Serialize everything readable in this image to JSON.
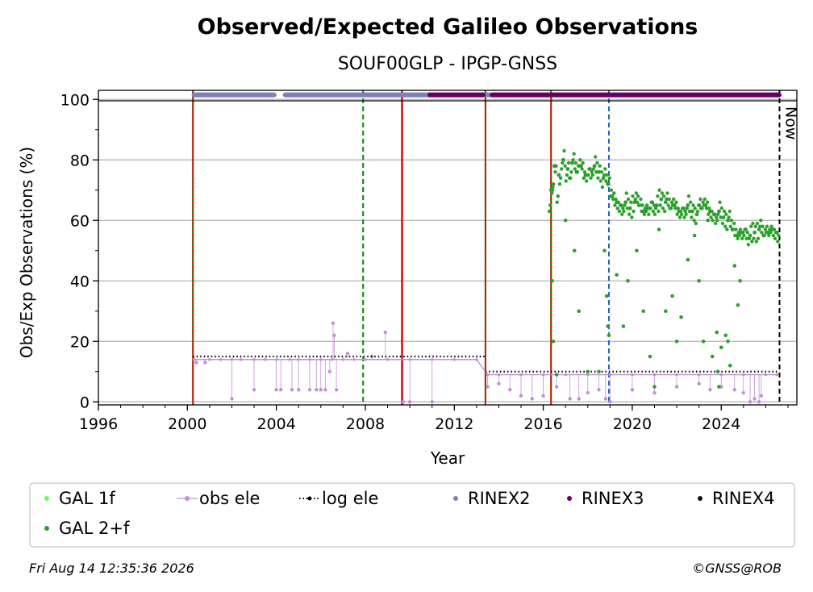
{
  "chart_data": {
    "type": "scatter",
    "title": "Observed/Expected Galileo Observations",
    "subtitle": "SOUF00GLP - IPGP-GNSS",
    "xlabel": "Year",
    "ylabel": "Obs/Exp Observations (%)",
    "xlim": [
      1996,
      2027.4
    ],
    "ylim": [
      -1,
      103
    ],
    "x_ticks": [
      1996,
      2000,
      2004,
      2008,
      2012,
      2016,
      2020,
      2024
    ],
    "y_ticks": [
      0,
      20,
      40,
      60,
      80,
      100
    ],
    "grid": "horizontal",
    "legend_position": "bottom",
    "now_label": "Now",
    "now_x": 2026.62,
    "colors": {
      "gal_1f": "#66ff55",
      "gal_2f": "#2ca02c",
      "obs_ele": "#c38fd4",
      "log_ele": "#000000",
      "rinex2": "#7f7fbf",
      "rinex3": "#660066",
      "rinex4": "#1a0a1a",
      "red_line": "#dd0000",
      "green_dashed": "#008800",
      "blue_dashed": "#1f5fbf"
    },
    "vertical_lines": [
      {
        "x": 2000.25,
        "style": "red-green-dotted"
      },
      {
        "x": 2007.9,
        "style": "green-dashed"
      },
      {
        "x": 2009.65,
        "style": "red-solid"
      },
      {
        "x": 2013.4,
        "style": "red-green-dotted"
      },
      {
        "x": 2016.35,
        "style": "red-green-dotted"
      },
      {
        "x": 2018.95,
        "style": "blue-dashed"
      },
      {
        "x": 2026.62,
        "style": "black-dashed"
      }
    ],
    "series": [
      {
        "name": "GAL 2+f",
        "points": [
          [
            2016.35,
            70
          ],
          [
            2016.5,
            78
          ],
          [
            2016.7,
            75
          ],
          [
            2016.9,
            80
          ],
          [
            2017.1,
            77
          ],
          [
            2017.3,
            79
          ],
          [
            2017.5,
            76
          ],
          [
            2017.7,
            78
          ],
          [
            2017.9,
            75
          ],
          [
            2018.1,
            77
          ],
          [
            2018.3,
            78
          ],
          [
            2018.5,
            76
          ],
          [
            2018.7,
            74
          ],
          [
            2018.9,
            72
          ],
          [
            2019.1,
            68
          ],
          [
            2019.3,
            66
          ],
          [
            2019.5,
            65
          ],
          [
            2019.7,
            66
          ],
          [
            2019.9,
            64
          ],
          [
            2020.1,
            66
          ],
          [
            2020.3,
            65
          ],
          [
            2020.5,
            63
          ],
          [
            2020.7,
            64
          ],
          [
            2020.9,
            66
          ],
          [
            2021.1,
            65
          ],
          [
            2021.3,
            67
          ],
          [
            2021.5,
            66
          ],
          [
            2021.7,
            64
          ],
          [
            2021.9,
            65
          ],
          [
            2022.1,
            63
          ],
          [
            2022.3,
            64
          ],
          [
            2022.5,
            65
          ],
          [
            2022.7,
            63
          ],
          [
            2022.9,
            62
          ],
          [
            2023.1,
            64
          ],
          [
            2023.3,
            65
          ],
          [
            2023.5,
            63
          ],
          [
            2023.7,
            62
          ],
          [
            2023.9,
            63
          ],
          [
            2024.1,
            61
          ],
          [
            2024.3,
            60
          ],
          [
            2024.5,
            57
          ],
          [
            2024.7,
            55
          ],
          [
            2024.9,
            56
          ],
          [
            2025.1,
            57
          ],
          [
            2025.3,
            55
          ],
          [
            2025.5,
            56
          ],
          [
            2025.7,
            57
          ],
          [
            2025.9,
            55
          ],
          [
            2026.1,
            56
          ],
          [
            2026.3,
            57
          ],
          [
            2026.5,
            56
          ]
        ],
        "outliers": [
          [
            2016.4,
            40
          ],
          [
            2016.45,
            20
          ],
          [
            2016.6,
            9
          ],
          [
            2017.0,
            60
          ],
          [
            2017.4,
            50
          ],
          [
            2017.6,
            30
          ],
          [
            2018.0,
            10
          ],
          [
            2018.5,
            10
          ],
          [
            2018.75,
            50
          ],
          [
            2018.85,
            35
          ],
          [
            2018.9,
            25
          ],
          [
            2018.95,
            22
          ],
          [
            2019.3,
            42
          ],
          [
            2019.6,
            25
          ],
          [
            2019.8,
            40
          ],
          [
            2020.2,
            50
          ],
          [
            2020.5,
            30
          ],
          [
            2020.8,
            15
          ],
          [
            2021.0,
            5
          ],
          [
            2021.2,
            57
          ],
          [
            2021.5,
            30
          ],
          [
            2021.8,
            35
          ],
          [
            2022.0,
            20
          ],
          [
            2022.2,
            28
          ],
          [
            2022.5,
            47
          ],
          [
            2022.8,
            55
          ],
          [
            2023.0,
            40
          ],
          [
            2023.2,
            20
          ],
          [
            2023.4,
            60
          ],
          [
            2023.6,
            15
          ],
          [
            2023.8,
            23
          ],
          [
            2023.85,
            10
          ],
          [
            2023.9,
            5
          ],
          [
            2024.0,
            18
          ],
          [
            2024.2,
            22
          ],
          [
            2024.3,
            20
          ],
          [
            2024.4,
            12
          ],
          [
            2024.6,
            45
          ],
          [
            2024.75,
            32
          ],
          [
            2024.85,
            40
          ]
        ]
      },
      {
        "name": "obs ele",
        "points": [
          [
            2000.3,
            14
          ],
          [
            2001.0,
            14
          ],
          [
            2001.5,
            14
          ],
          [
            2002.0,
            14
          ],
          [
            2002.4,
            14
          ],
          [
            2003.0,
            14
          ],
          [
            2003.5,
            14
          ],
          [
            2004.0,
            14
          ],
          [
            2004.6,
            14
          ],
          [
            2005.0,
            14
          ],
          [
            2005.5,
            14
          ],
          [
            2006.0,
            14
          ],
          [
            2006.5,
            14
          ],
          [
            2007.0,
            14
          ],
          [
            2007.5,
            14
          ],
          [
            2008.0,
            14
          ],
          [
            2009.0,
            14
          ],
          [
            2010.0,
            14
          ],
          [
            2011.0,
            14
          ],
          [
            2012.0,
            14
          ],
          [
            2013.0,
            14
          ],
          [
            2013.5,
            9
          ],
          [
            2014.0,
            9
          ],
          [
            2015.0,
            9
          ],
          [
            2016.0,
            9
          ],
          [
            2017.0,
            9
          ],
          [
            2018.0,
            9
          ],
          [
            2019.0,
            9
          ],
          [
            2020.0,
            9
          ],
          [
            2021.0,
            9
          ],
          [
            2022.0,
            9
          ],
          [
            2023.0,
            9
          ],
          [
            2024.0,
            9
          ],
          [
            2025.0,
            9
          ],
          [
            2026.0,
            9
          ],
          [
            2026.5,
            9
          ]
        ],
        "outliers": [
          [
            2000.4,
            13
          ],
          [
            2000.8,
            13
          ],
          [
            2002.0,
            1
          ],
          [
            2003.0,
            4
          ],
          [
            2004.0,
            4
          ],
          [
            2004.2,
            4
          ],
          [
            2004.7,
            4
          ],
          [
            2005.0,
            4
          ],
          [
            2005.5,
            4
          ],
          [
            2005.8,
            4
          ],
          [
            2006.0,
            4
          ],
          [
            2006.2,
            4
          ],
          [
            2006.4,
            10
          ],
          [
            2006.55,
            26
          ],
          [
            2006.6,
            22
          ],
          [
            2006.7,
            4
          ],
          [
            2007.2,
            16
          ],
          [
            2008.3,
            15
          ],
          [
            2008.9,
            23
          ],
          [
            2009.7,
            0
          ],
          [
            2010.0,
            0
          ],
          [
            2011.0,
            0
          ],
          [
            2013.5,
            5
          ],
          [
            2014.0,
            6
          ],
          [
            2014.5,
            4
          ],
          [
            2015.0,
            2
          ],
          [
            2015.5,
            1
          ],
          [
            2016.0,
            2
          ],
          [
            2016.6,
            5
          ],
          [
            2017.2,
            1
          ],
          [
            2017.6,
            1
          ],
          [
            2018.0,
            3
          ],
          [
            2018.5,
            4
          ],
          [
            2018.8,
            1
          ],
          [
            2019.0,
            0
          ],
          [
            2020.0,
            4
          ],
          [
            2021.0,
            3
          ],
          [
            2022.0,
            5
          ],
          [
            2023.0,
            6
          ],
          [
            2023.5,
            4
          ],
          [
            2024.0,
            5
          ],
          [
            2024.6,
            4
          ],
          [
            2025.0,
            3
          ],
          [
            2025.3,
            0
          ],
          [
            2025.5,
            1
          ],
          [
            2025.7,
            0
          ],
          [
            2025.8,
            2
          ]
        ]
      },
      {
        "name": "log ele",
        "segments": [
          {
            "from": 2000.25,
            "to": 2013.4,
            "value": 15
          },
          {
            "from": 2013.4,
            "to": 2026.62,
            "value": 10
          }
        ]
      },
      {
        "name": "RINEX2",
        "value": 101.5,
        "ranges": [
          [
            2000.3,
            2003.9
          ],
          [
            2004.4,
            2010.9
          ],
          [
            2013.4,
            2013.6
          ]
        ]
      },
      {
        "name": "RINEX3",
        "value": 101.5,
        "ranges": [
          [
            2010.9,
            2013.3
          ],
          [
            2013.7,
            2026.6
          ]
        ]
      },
      {
        "name": "RINEX4",
        "value": 101.5,
        "ranges": []
      },
      {
        "name": "GAL 1f",
        "points": []
      }
    ],
    "legend": [
      {
        "label": "GAL 1f",
        "marker": "dot",
        "color": "#66ff55"
      },
      {
        "label": "obs ele",
        "marker": "line-dot",
        "color": "#c38fd4"
      },
      {
        "label": "log ele",
        "marker": "dotted-line",
        "color": "#000000"
      },
      {
        "label": "RINEX2",
        "marker": "dot",
        "color": "#7f7fbf"
      },
      {
        "label": "RINEX3",
        "marker": "dot",
        "color": "#660066"
      },
      {
        "label": "RINEX4",
        "marker": "dot",
        "color": "#1a0a1a"
      },
      {
        "label": "GAL 2+f",
        "marker": "dot",
        "color": "#2ca02c"
      }
    ]
  },
  "footer": {
    "timestamp": "Fri Aug 14 12:35:36 2026",
    "credit": "©GNSS@ROB"
  }
}
